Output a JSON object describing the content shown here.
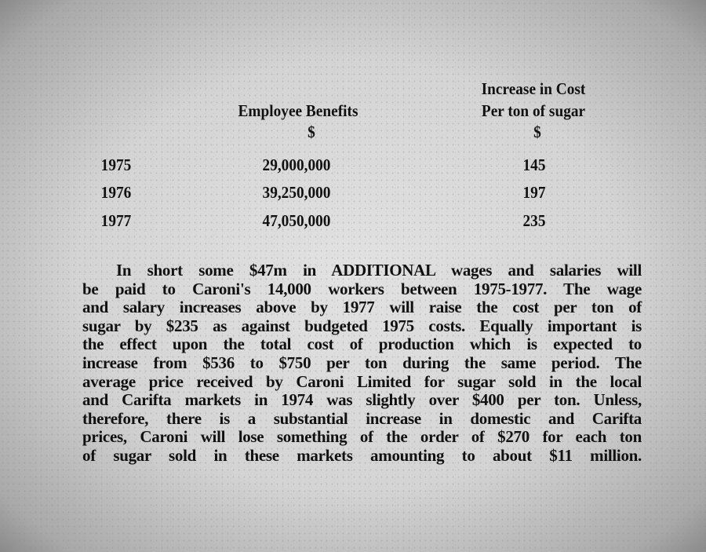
{
  "table": {
    "headers": {
      "benefits": [
        "Employee Benefits",
        "$"
      ],
      "cost": [
        "Increase in Cost",
        "Per ton of sugar",
        "$"
      ]
    },
    "rows": [
      {
        "year": "1975",
        "benefits": "29,000,000",
        "cost": "145"
      },
      {
        "year": "1976",
        "benefits": "39,250,000",
        "cost": "197"
      },
      {
        "year": "1977",
        "benefits": "47,050,000",
        "cost": "235"
      }
    ]
  },
  "paragraph_lines": [
    "In short some $47m in ADDITIONAL wages and salaries will",
    "be paid to Caroni's 14,000 workers between 1975-1977. The wage",
    "and salary increases above by 1977 will raise the cost per ton of",
    "sugar by $235 as against budgeted 1975 costs. Equally important is",
    "the effect upon the total cost of production which is expected to",
    "increase from $536 to $750 per ton during the same period.      The",
    "average price received by Caroni Limited for sugar sold in the local",
    "and Carifta markets in 1974 was slightly over $400 per ton. Unless,",
    "therefore, there is a substantial increase in domestic and Carifta",
    "prices, Caroni will lose something of the order of $270 for each ton",
    "of sugar sold in these markets amounting to about $11 million."
  ]
}
